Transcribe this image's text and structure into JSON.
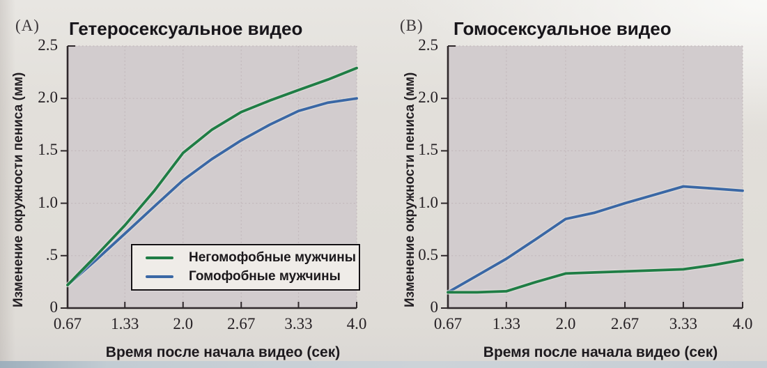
{
  "page": {
    "background": "#e2dfda",
    "plot_background": "#d2ccce",
    "grid_color": "#c2b7bb",
    "axis_color": "#2f282b",
    "halo_color": "#eceae4",
    "bottom_edge_color": "#c3ccd3"
  },
  "chart_data": [
    {
      "type": "line",
      "panel_label": "(A)",
      "title": "Гетеросексуальное видео",
      "xlabel": "Время после начала видео (сек)",
      "ylabel": "Изменение окружности пениса (мм)",
      "xlim": [
        0.67,
        4.0
      ],
      "ylim": [
        0,
        2.5
      ],
      "x_tick_labels": [
        "0.67",
        "1.33",
        "2.0",
        "2.67",
        "3.33",
        "4.0"
      ],
      "y_tick_labels": [
        "0",
        ".5",
        "1.0",
        "1.5",
        "2.0",
        "2.5"
      ],
      "grid": true,
      "legend_position": "inside-bottom",
      "x": [
        0.67,
        1.0,
        1.33,
        1.67,
        2.0,
        2.33,
        2.67,
        3.0,
        3.33,
        3.67,
        4.0
      ],
      "series": [
        {
          "name": "Негомофобные мужчины",
          "color": "#1f7d45",
          "values": [
            0.22,
            0.5,
            0.79,
            1.12,
            1.48,
            1.7,
            1.87,
            1.98,
            2.08,
            2.18,
            2.29
          ]
        },
        {
          "name": "Гомофобные мужчины",
          "color": "#3a67a5",
          "values": [
            0.22,
            0.46,
            0.71,
            0.97,
            1.22,
            1.42,
            1.6,
            1.75,
            1.88,
            1.96,
            2.0
          ]
        }
      ]
    },
    {
      "type": "line",
      "panel_label": "(B)",
      "title": "Гомосексуальное видео",
      "xlabel": "Время после начала видео (сек)",
      "ylabel": "Изменение окружности пениса (мм)",
      "xlim": [
        0.67,
        4.0
      ],
      "ylim": [
        0,
        2.5
      ],
      "x_tick_labels": [
        "0.67",
        "1.33",
        "2.0",
        "2.67",
        "3.33",
        "4.0"
      ],
      "y_tick_labels": [
        "0",
        "0.5",
        "1.0",
        "1.5",
        "2.0",
        "2.5"
      ],
      "grid": true,
      "legend_position": "none",
      "x": [
        0.67,
        1.0,
        1.33,
        1.67,
        2.0,
        2.33,
        2.67,
        3.0,
        3.33,
        3.67,
        4.0
      ],
      "series": [
        {
          "name": "Негомофобные мужчины",
          "color": "#1f7d45",
          "values": [
            0.15,
            0.15,
            0.16,
            0.25,
            0.33,
            0.34,
            0.35,
            0.36,
            0.37,
            0.41,
            0.46
          ]
        },
        {
          "name": "Гомофобные мужчины",
          "color": "#3a67a5",
          "values": [
            0.15,
            0.31,
            0.47,
            0.66,
            0.85,
            0.91,
            1.0,
            1.08,
            1.16,
            1.14,
            1.12
          ]
        }
      ]
    }
  ]
}
